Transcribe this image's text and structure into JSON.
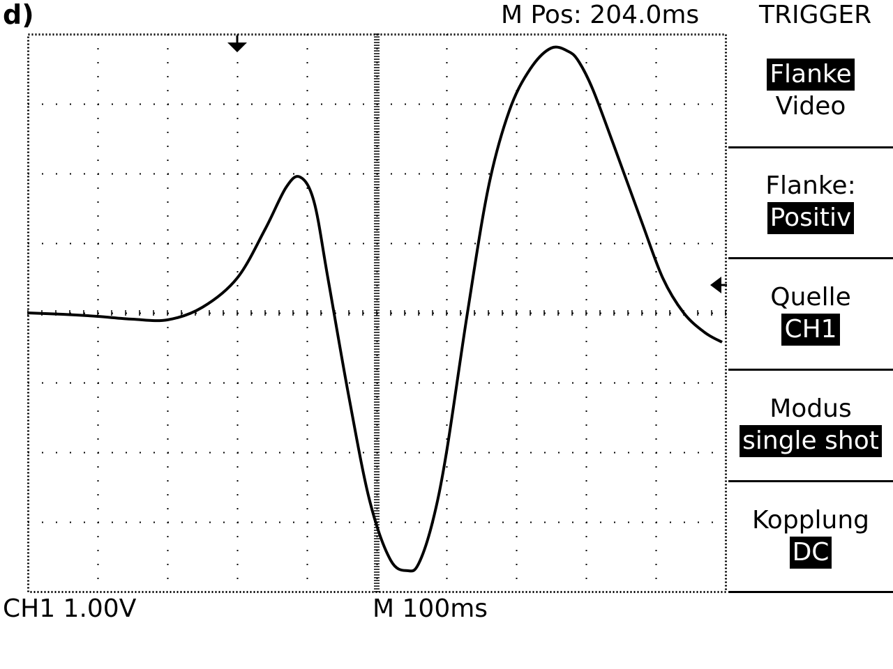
{
  "panel_label": "d)",
  "header": {
    "m_pos": "M Pos: 204.0ms",
    "menu_title": "TRIGGER"
  },
  "footer": {
    "ch1_scale": "CH1 1.00V",
    "time_scale": "M 100ms"
  },
  "menu": [
    {
      "top": "Flanke",
      "top_selected": true,
      "bottom": "Video",
      "bottom_selected": false
    },
    {
      "top": "Flanke:",
      "top_selected": false,
      "bottom": "Positiv",
      "bottom_selected": true
    },
    {
      "top": "Quelle",
      "top_selected": false,
      "bottom": "CH1",
      "bottom_selected": true
    },
    {
      "top": "Modus",
      "top_selected": false,
      "bottom": "single shot",
      "bottom_selected": true
    },
    {
      "top": "Kopplung",
      "top_selected": false,
      "bottom": "DC",
      "bottom_selected": true
    }
  ],
  "chart_data": {
    "type": "line",
    "grid": true,
    "divisions": {
      "x": 10,
      "y": 8
    },
    "xlim": [
      0,
      10
    ],
    "ylim": [
      -4,
      4
    ],
    "x_unit_per_div": "100ms",
    "y_unit_per_div": "1.00V",
    "series": [
      {
        "x": [
          0,
          0.5,
          1.0,
          1.5,
          2.0,
          2.5,
          3.0,
          3.4,
          3.7,
          3.9,
          4.1,
          4.3,
          4.6,
          4.9,
          5.2,
          5.45,
          5.6,
          5.8,
          6.0,
          6.3,
          6.6,
          6.9,
          7.2,
          7.5,
          7.75,
          7.9,
          8.1,
          8.4,
          8.8,
          9.1,
          9.4,
          9.7,
          9.95
        ],
        "y": [
          0.0,
          -0.02,
          -0.05,
          -0.09,
          -0.1,
          0.08,
          0.5,
          1.2,
          1.8,
          1.95,
          1.6,
          0.5,
          -1.2,
          -2.7,
          -3.55,
          -3.7,
          -3.6,
          -3.0,
          -2.0,
          0.0,
          1.8,
          2.9,
          3.5,
          3.8,
          3.75,
          3.6,
          3.2,
          2.4,
          1.3,
          0.5,
          0.0,
          -0.28,
          -0.42
        ]
      }
    ],
    "markers": {
      "trigger_position_x": 3.0,
      "trigger_level_y": 0.4
    }
  }
}
